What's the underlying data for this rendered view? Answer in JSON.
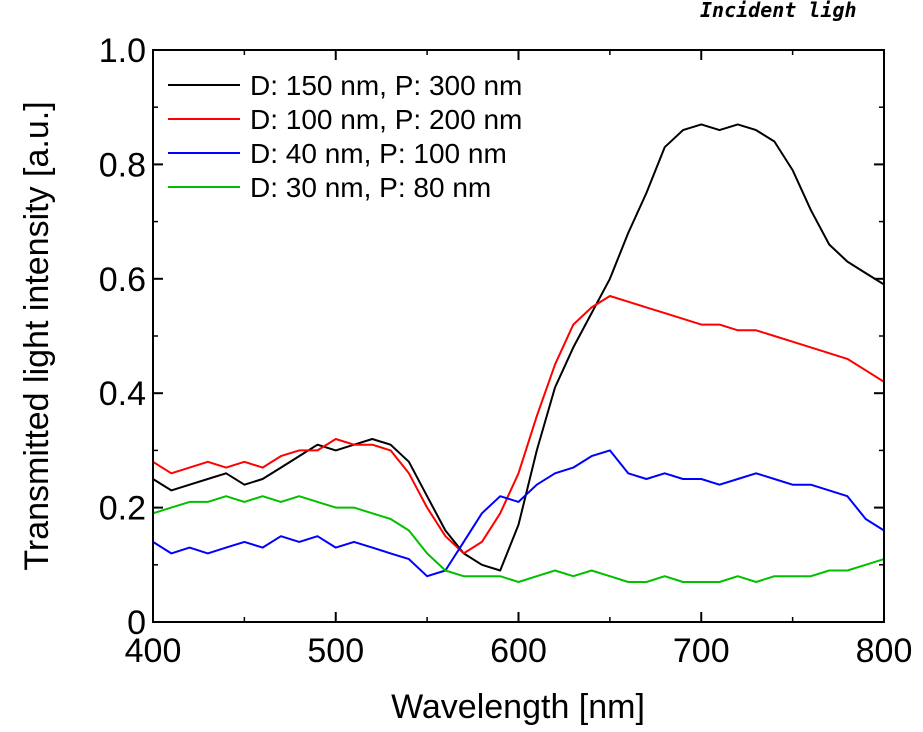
{
  "corner_note": "Incident ligh",
  "chart_data": {
    "type": "line",
    "xlabel": "Wavelength [nm]",
    "ylabel": "Transmitted light intensity [a.u.]",
    "xlim": [
      400,
      800
    ],
    "ylim": [
      0,
      1.0
    ],
    "xticks": [
      400,
      500,
      600,
      700,
      800
    ],
    "xtick_labels": [
      "400",
      "500",
      "600",
      "700",
      "800"
    ],
    "yticks": [
      0,
      0.2,
      0.4,
      0.6,
      0.8,
      1.0
    ],
    "ytick_labels": [
      "0",
      "0.2",
      "0.4",
      "0.6",
      "0.8",
      "1.0"
    ],
    "grid": false,
    "legend_position": "top-left",
    "x": [
      400,
      410,
      420,
      430,
      440,
      450,
      460,
      470,
      480,
      490,
      500,
      510,
      520,
      530,
      540,
      550,
      560,
      570,
      580,
      590,
      600,
      610,
      620,
      630,
      640,
      650,
      660,
      670,
      680,
      690,
      700,
      710,
      720,
      730,
      740,
      750,
      760,
      770,
      780,
      790,
      800
    ],
    "series": [
      {
        "name": "D: 150 nm, P: 300 nm",
        "color": "#000000",
        "values": [
          0.25,
          0.23,
          0.24,
          0.25,
          0.26,
          0.24,
          0.25,
          0.27,
          0.29,
          0.31,
          0.3,
          0.31,
          0.32,
          0.31,
          0.28,
          0.22,
          0.16,
          0.12,
          0.1,
          0.09,
          0.17,
          0.3,
          0.41,
          0.48,
          0.54,
          0.6,
          0.68,
          0.75,
          0.83,
          0.86,
          0.87,
          0.86,
          0.87,
          0.86,
          0.84,
          0.79,
          0.72,
          0.66,
          0.63,
          0.61,
          0.59
        ]
      },
      {
        "name": "D: 100 nm, P: 200 nm",
        "color": "#ff0000",
        "values": [
          0.28,
          0.26,
          0.27,
          0.28,
          0.27,
          0.28,
          0.27,
          0.29,
          0.3,
          0.3,
          0.32,
          0.31,
          0.31,
          0.3,
          0.26,
          0.2,
          0.15,
          0.12,
          0.14,
          0.19,
          0.26,
          0.36,
          0.45,
          0.52,
          0.55,
          0.57,
          0.56,
          0.55,
          0.54,
          0.53,
          0.52,
          0.52,
          0.51,
          0.51,
          0.5,
          0.49,
          0.48,
          0.47,
          0.46,
          0.44,
          0.42
        ]
      },
      {
        "name": "D: 40 nm, P: 100 nm",
        "color": "#0000ff",
        "values": [
          0.14,
          0.12,
          0.13,
          0.12,
          0.13,
          0.14,
          0.13,
          0.15,
          0.14,
          0.15,
          0.13,
          0.14,
          0.13,
          0.12,
          0.11,
          0.08,
          0.09,
          0.14,
          0.19,
          0.22,
          0.21,
          0.24,
          0.26,
          0.27,
          0.29,
          0.3,
          0.26,
          0.25,
          0.26,
          0.25,
          0.25,
          0.24,
          0.25,
          0.26,
          0.25,
          0.24,
          0.24,
          0.23,
          0.22,
          0.18,
          0.16
        ]
      },
      {
        "name": "D: 30 nm, P: 80 nm",
        "color": "#00c000",
        "values": [
          0.19,
          0.2,
          0.21,
          0.21,
          0.22,
          0.21,
          0.22,
          0.21,
          0.22,
          0.21,
          0.2,
          0.2,
          0.19,
          0.18,
          0.16,
          0.12,
          0.09,
          0.08,
          0.08,
          0.08,
          0.07,
          0.08,
          0.09,
          0.08,
          0.09,
          0.08,
          0.07,
          0.07,
          0.08,
          0.07,
          0.07,
          0.07,
          0.08,
          0.07,
          0.08,
          0.08,
          0.08,
          0.09,
          0.09,
          0.1,
          0.11
        ]
      }
    ]
  }
}
